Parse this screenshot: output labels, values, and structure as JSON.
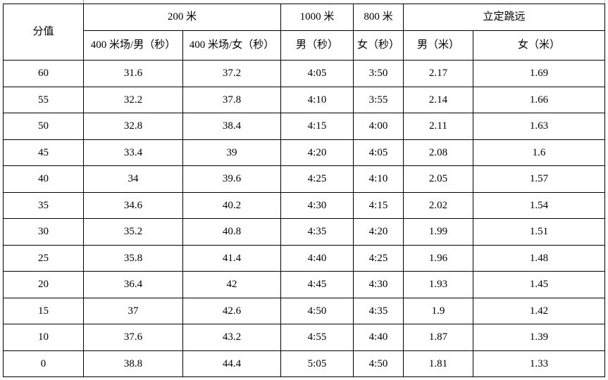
{
  "table": {
    "header": {
      "score": "分值",
      "group_200m": "200 米",
      "group_1000m": "1000 米",
      "group_800m": "800 米",
      "group_standing_jump": "立定跳远",
      "col_400m_track_male_sec": "400 米场/男（秒）",
      "col_400m_track_female_sec": "400 米场/女（秒）",
      "col_male_sec": "男（秒）",
      "col_female_sec": "女（秒）",
      "col_male_m": "男（米）",
      "col_female_m": "女（米）"
    },
    "rows": [
      [
        "60",
        "31.6",
        "37.2",
        "4:05",
        "3:50",
        "2.17",
        "1.69"
      ],
      [
        "55",
        "32.2",
        "37.8",
        "4:10",
        "3:55",
        "2.14",
        "1.66"
      ],
      [
        "50",
        "32.8",
        "38.4",
        "4:15",
        "4:00",
        "2.11",
        "1.63"
      ],
      [
        "45",
        "33.4",
        "39",
        "4:20",
        "4:05",
        "2.08",
        "1.6"
      ],
      [
        "40",
        "34",
        "39.6",
        "4:25",
        "4:10",
        "2.05",
        "1.57"
      ],
      [
        "35",
        "34.6",
        "40.2",
        "4:30",
        "4:15",
        "2.02",
        "1.54"
      ],
      [
        "30",
        "35.2",
        "40.8",
        "4:35",
        "4:20",
        "1.99",
        "1.51"
      ],
      [
        "25",
        "35.8",
        "41.4",
        "4:40",
        "4:25",
        "1.96",
        "1.48"
      ],
      [
        "20",
        "36.4",
        "42",
        "4:45",
        "4:30",
        "1.93",
        "1.45"
      ],
      [
        "15",
        "37",
        "42.6",
        "4:50",
        "4:35",
        "1.9",
        "1.42"
      ],
      [
        "10",
        "37.6",
        "43.2",
        "4:55",
        "4:40",
        "1.87",
        "1.39"
      ],
      [
        "0",
        "38.8",
        "44.4",
        "5:05",
        "4:50",
        "1.81",
        "1.33"
      ]
    ]
  },
  "colors": {
    "border": "#000000",
    "background": "#ffffff",
    "text": "#000000"
  }
}
